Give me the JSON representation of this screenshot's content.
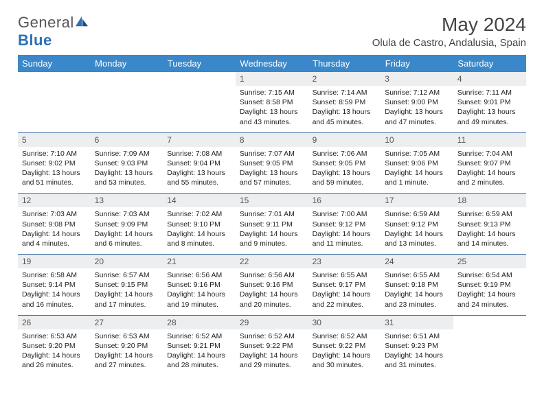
{
  "brand": {
    "name_a": "General",
    "name_b": "Blue"
  },
  "title": "May 2024",
  "location": "Olula de Castro, Andalusia, Spain",
  "colors": {
    "header_bg": "#3a88c9",
    "header_fg": "#ffffff",
    "rule": "#3a6fa5",
    "daynum_bg": "#eceef0",
    "text": "#222222"
  },
  "dow": [
    "Sunday",
    "Monday",
    "Tuesday",
    "Wednesday",
    "Thursday",
    "Friday",
    "Saturday"
  ],
  "weeks": [
    [
      null,
      null,
      null,
      {
        "n": "1",
        "sr": "7:15 AM",
        "ss": "8:58 PM",
        "dl": "13 hours and 43 minutes."
      },
      {
        "n": "2",
        "sr": "7:14 AM",
        "ss": "8:59 PM",
        "dl": "13 hours and 45 minutes."
      },
      {
        "n": "3",
        "sr": "7:12 AM",
        "ss": "9:00 PM",
        "dl": "13 hours and 47 minutes."
      },
      {
        "n": "4",
        "sr": "7:11 AM",
        "ss": "9:01 PM",
        "dl": "13 hours and 49 minutes."
      }
    ],
    [
      {
        "n": "5",
        "sr": "7:10 AM",
        "ss": "9:02 PM",
        "dl": "13 hours and 51 minutes."
      },
      {
        "n": "6",
        "sr": "7:09 AM",
        "ss": "9:03 PM",
        "dl": "13 hours and 53 minutes."
      },
      {
        "n": "7",
        "sr": "7:08 AM",
        "ss": "9:04 PM",
        "dl": "13 hours and 55 minutes."
      },
      {
        "n": "8",
        "sr": "7:07 AM",
        "ss": "9:05 PM",
        "dl": "13 hours and 57 minutes."
      },
      {
        "n": "9",
        "sr": "7:06 AM",
        "ss": "9:05 PM",
        "dl": "13 hours and 59 minutes."
      },
      {
        "n": "10",
        "sr": "7:05 AM",
        "ss": "9:06 PM",
        "dl": "14 hours and 1 minute."
      },
      {
        "n": "11",
        "sr": "7:04 AM",
        "ss": "9:07 PM",
        "dl": "14 hours and 2 minutes."
      }
    ],
    [
      {
        "n": "12",
        "sr": "7:03 AM",
        "ss": "9:08 PM",
        "dl": "14 hours and 4 minutes."
      },
      {
        "n": "13",
        "sr": "7:03 AM",
        "ss": "9:09 PM",
        "dl": "14 hours and 6 minutes."
      },
      {
        "n": "14",
        "sr": "7:02 AM",
        "ss": "9:10 PM",
        "dl": "14 hours and 8 minutes."
      },
      {
        "n": "15",
        "sr": "7:01 AM",
        "ss": "9:11 PM",
        "dl": "14 hours and 9 minutes."
      },
      {
        "n": "16",
        "sr": "7:00 AM",
        "ss": "9:12 PM",
        "dl": "14 hours and 11 minutes."
      },
      {
        "n": "17",
        "sr": "6:59 AM",
        "ss": "9:12 PM",
        "dl": "14 hours and 13 minutes."
      },
      {
        "n": "18",
        "sr": "6:59 AM",
        "ss": "9:13 PM",
        "dl": "14 hours and 14 minutes."
      }
    ],
    [
      {
        "n": "19",
        "sr": "6:58 AM",
        "ss": "9:14 PM",
        "dl": "14 hours and 16 minutes."
      },
      {
        "n": "20",
        "sr": "6:57 AM",
        "ss": "9:15 PM",
        "dl": "14 hours and 17 minutes."
      },
      {
        "n": "21",
        "sr": "6:56 AM",
        "ss": "9:16 PM",
        "dl": "14 hours and 19 minutes."
      },
      {
        "n": "22",
        "sr": "6:56 AM",
        "ss": "9:16 PM",
        "dl": "14 hours and 20 minutes."
      },
      {
        "n": "23",
        "sr": "6:55 AM",
        "ss": "9:17 PM",
        "dl": "14 hours and 22 minutes."
      },
      {
        "n": "24",
        "sr": "6:55 AM",
        "ss": "9:18 PM",
        "dl": "14 hours and 23 minutes."
      },
      {
        "n": "25",
        "sr": "6:54 AM",
        "ss": "9:19 PM",
        "dl": "14 hours and 24 minutes."
      }
    ],
    [
      {
        "n": "26",
        "sr": "6:53 AM",
        "ss": "9:20 PM",
        "dl": "14 hours and 26 minutes."
      },
      {
        "n": "27",
        "sr": "6:53 AM",
        "ss": "9:20 PM",
        "dl": "14 hours and 27 minutes."
      },
      {
        "n": "28",
        "sr": "6:52 AM",
        "ss": "9:21 PM",
        "dl": "14 hours and 28 minutes."
      },
      {
        "n": "29",
        "sr": "6:52 AM",
        "ss": "9:22 PM",
        "dl": "14 hours and 29 minutes."
      },
      {
        "n": "30",
        "sr": "6:52 AM",
        "ss": "9:22 PM",
        "dl": "14 hours and 30 minutes."
      },
      {
        "n": "31",
        "sr": "6:51 AM",
        "ss": "9:23 PM",
        "dl": "14 hours and 31 minutes."
      },
      null
    ]
  ],
  "labels": {
    "sunrise": "Sunrise:",
    "sunset": "Sunset:",
    "daylight": "Daylight:"
  }
}
